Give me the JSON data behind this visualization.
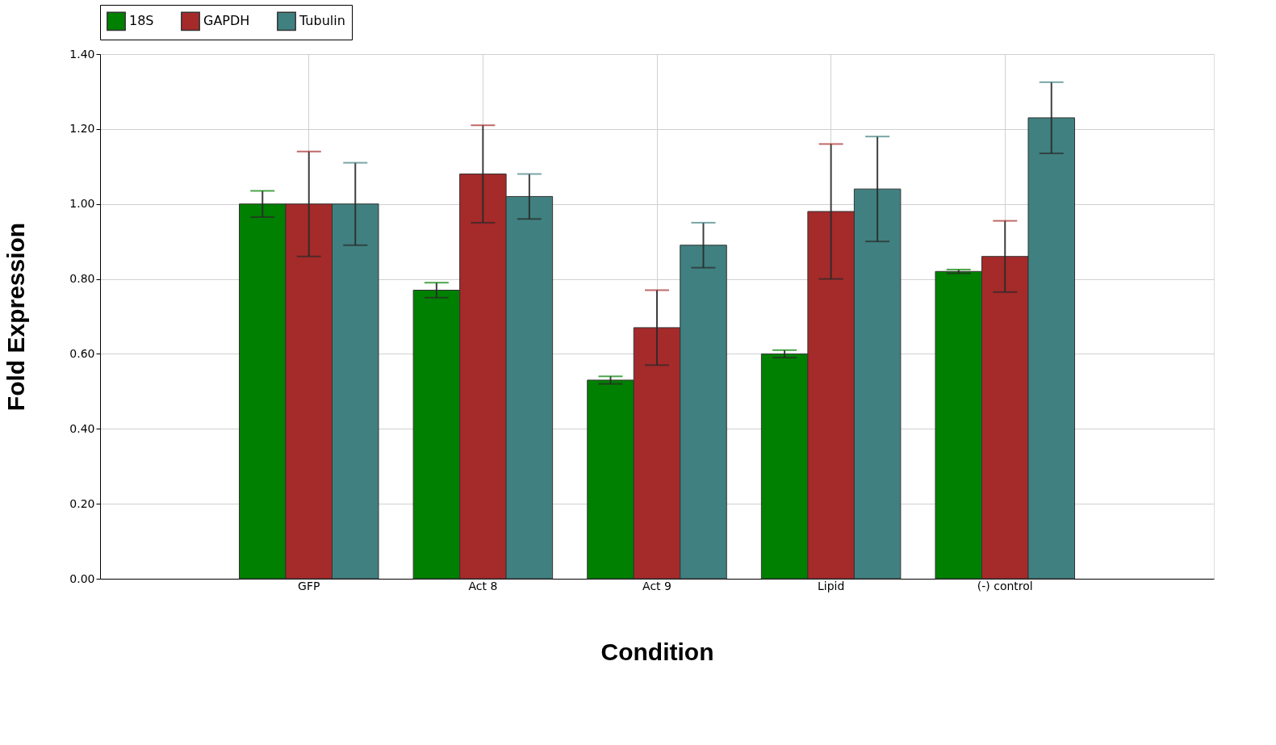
{
  "chart_data": {
    "type": "bar",
    "xlabel": "Condition",
    "ylabel": "Fold Expression",
    "categories": [
      "GFP",
      "Act 8",
      "Act 9",
      "Lipid",
      "(-) control"
    ],
    "series": [
      {
        "name": "18S",
        "color": "#008000",
        "values": [
          1.0,
          0.77,
          0.53,
          0.6,
          0.82
        ],
        "errors": [
          0.035,
          0.02,
          0.01,
          0.01,
          0.005
        ]
      },
      {
        "name": "GAPDH",
        "color": "#a52a2a",
        "values": [
          1.0,
          1.08,
          0.67,
          0.98,
          0.86
        ],
        "errors": [
          0.14,
          0.13,
          0.1,
          0.18,
          0.095
        ]
      },
      {
        "name": "Tubulin",
        "color": "#408080",
        "values": [
          1.0,
          1.02,
          0.89,
          1.04,
          1.23
        ],
        "errors": [
          0.11,
          0.06,
          0.06,
          0.14,
          0.095
        ]
      }
    ],
    "ylim": [
      0,
      1.4
    ],
    "yticks": [
      {
        "value": 0,
        "label": "0.00"
      },
      {
        "value": 0.2,
        "label": "0.20"
      },
      {
        "value": 0.4,
        "label": "0.40"
      },
      {
        "value": 0.6,
        "label": "0.60"
      },
      {
        "value": 0.8,
        "label": "0.80"
      },
      {
        "value": 1.0,
        "label": "1.00"
      },
      {
        "value": 1.2,
        "label": "1.20"
      },
      {
        "value": 1.4,
        "label": "1.40"
      }
    ],
    "grid": true,
    "legend": "top"
  }
}
